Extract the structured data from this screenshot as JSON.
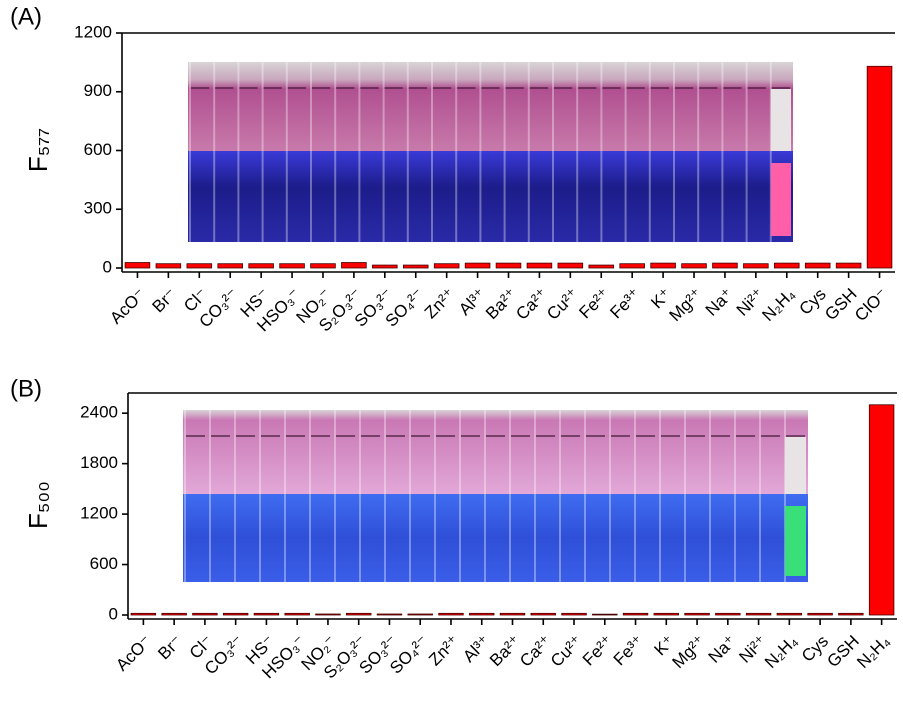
{
  "chart_data": [
    {
      "type": "bar",
      "label": "(A)",
      "y_label": "F₅₇₇",
      "categories": [
        "AcO⁻",
        "Br⁻",
        "Cl⁻",
        "CO₃²⁻",
        "HS⁻",
        "HSO₃⁻",
        "NO₂⁻",
        "S₂O₃²⁻",
        "SO₃²⁻",
        "SO₄²⁻",
        "Zn²⁺",
        "Al³⁺",
        "Ba²⁺",
        "Ca²⁺",
        "Cu²⁺",
        "Fe²⁺",
        "Fe³⁺",
        "K⁺",
        "Mg²⁺",
        "Na⁺",
        "Ni²⁺",
        "N₂H₄",
        "Cys",
        "GSH",
        "ClO⁻"
      ],
      "values": [
        28,
        22,
        22,
        22,
        22,
        22,
        22,
        28,
        15,
        15,
        22,
        25,
        25,
        25,
        25,
        15,
        22,
        25,
        22,
        25,
        22,
        25,
        25,
        25,
        1030
      ],
      "color": "#ff0000",
      "ylim": [
        0,
        1200
      ],
      "yticks": [
        0,
        300,
        600,
        900,
        1200
      ]
    },
    {
      "type": "bar",
      "label": "(B)",
      "y_label": "F₅₀₀",
      "categories": [
        "AcO⁻",
        "Br⁻",
        "Cl⁻",
        "CO₃²⁻",
        "HS⁻",
        "HSO₃⁻",
        "NO₂⁻",
        "S₂O₃²⁻",
        "SO₃²⁻",
        "SO₄²⁻",
        "Zn²⁺",
        "Al³⁺",
        "Ba²⁺",
        "Ca²⁺",
        "Cu²⁺",
        "Fe²⁺",
        "Fe³⁺",
        "K⁺",
        "Mg²⁺",
        "Na⁺",
        "Ni²⁺",
        "N₂H₄",
        "Cys",
        "GSH",
        "N₂H₄"
      ],
      "values": [
        20,
        20,
        20,
        20,
        20,
        20,
        12,
        20,
        12,
        12,
        20,
        20,
        20,
        20,
        20,
        10,
        20,
        20,
        20,
        20,
        20,
        20,
        20,
        20,
        2500
      ],
      "color": "#ff0000",
      "ylim": [
        0,
        2640
      ],
      "yticks": [
        0,
        600,
        1200,
        1800,
        2400
      ]
    }
  ]
}
